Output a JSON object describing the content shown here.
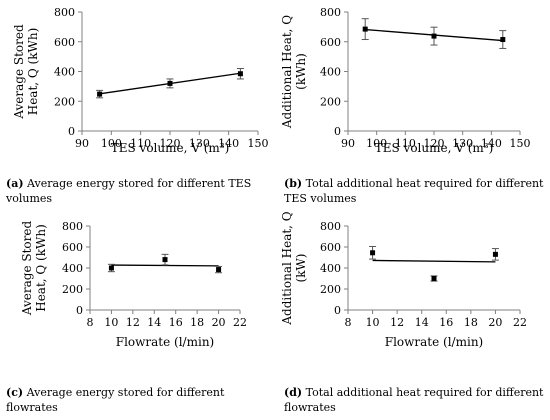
{
  "captions": [
    {
      "letter": "(a)",
      "text": "Average energy stored for different TES volumes"
    },
    {
      "letter": "(b)",
      "text": "Total additional heat required for different TES volumes"
    },
    {
      "letter": "(c)",
      "text": "Average energy stored for different flowrates"
    },
    {
      "letter": "(d)",
      "text": "Total additional heat required for different flowrates"
    }
  ],
  "chart_data": [
    {
      "type": "scatter",
      "ylabel_lines": [
        "Average Stored",
        "Heat, Q (kWh)"
      ],
      "xlabel": "TES volume, V (m³)",
      "xlim": [
        90,
        150
      ],
      "xticks": [
        90,
        100,
        110,
        120,
        130,
        140,
        150
      ],
      "ylim": [
        0,
        800
      ],
      "yticks": [
        0,
        200,
        400,
        600,
        800
      ],
      "points": [
        {
          "x": 96,
          "y": 248,
          "err": 25
        },
        {
          "x": 120,
          "y": 320,
          "err": 30
        },
        {
          "x": 144,
          "y": 385,
          "err": 35
        }
      ],
      "trendline": {
        "x": [
          96,
          144
        ],
        "y": [
          250,
          388
        ]
      }
    },
    {
      "type": "scatter",
      "ylabel_lines": [
        "Additional Heat, Q",
        "(kWh)"
      ],
      "xlabel": "TES volume, V (m³)",
      "xlim": [
        90,
        150
      ],
      "xticks": [
        90,
        100,
        110,
        120,
        130,
        140,
        150
      ],
      "ylim": [
        0,
        800
      ],
      "yticks": [
        0,
        200,
        400,
        600,
        800
      ],
      "points": [
        {
          "x": 96,
          "y": 685,
          "err": 70
        },
        {
          "x": 120,
          "y": 638,
          "err": 60
        },
        {
          "x": 144,
          "y": 615,
          "err": 60
        }
      ],
      "trendline": {
        "x": [
          96,
          144
        ],
        "y": [
          682,
          608
        ]
      }
    },
    {
      "type": "scatter",
      "ylabel_lines": [
        "Average Stored",
        "Heat, Q (kWh)"
      ],
      "xlabel": "Flowrate (l/min)",
      "xlim": [
        8,
        22
      ],
      "xticks": [
        8,
        10,
        12,
        14,
        16,
        18,
        20,
        22
      ],
      "ylim": [
        0,
        800
      ],
      "yticks": [
        0,
        200,
        400,
        600,
        800
      ],
      "points": [
        {
          "x": 10,
          "y": 400,
          "err": 35
        },
        {
          "x": 15,
          "y": 480,
          "err": 50
        },
        {
          "x": 20,
          "y": 385,
          "err": 30
        }
      ],
      "trendline": {
        "x": [
          10,
          20
        ],
        "y": [
          428,
          420
        ]
      }
    },
    {
      "type": "scatter",
      "ylabel_lines": [
        "Additional Heat, Q",
        "(kW)"
      ],
      "xlabel": "Flowrate (l/min)",
      "xlim": [
        8,
        22
      ],
      "xticks": [
        8,
        10,
        12,
        14,
        16,
        18,
        20,
        22
      ],
      "ylim": [
        0,
        800
      ],
      "yticks": [
        0,
        200,
        400,
        600,
        800
      ],
      "points": [
        {
          "x": 10,
          "y": 545,
          "err": 60
        },
        {
          "x": 15,
          "y": 300,
          "err": 25
        },
        {
          "x": 20,
          "y": 530,
          "err": 55
        }
      ],
      "trendline": {
        "x": [
          10,
          20
        ],
        "y": [
          472,
          458
        ]
      }
    }
  ]
}
